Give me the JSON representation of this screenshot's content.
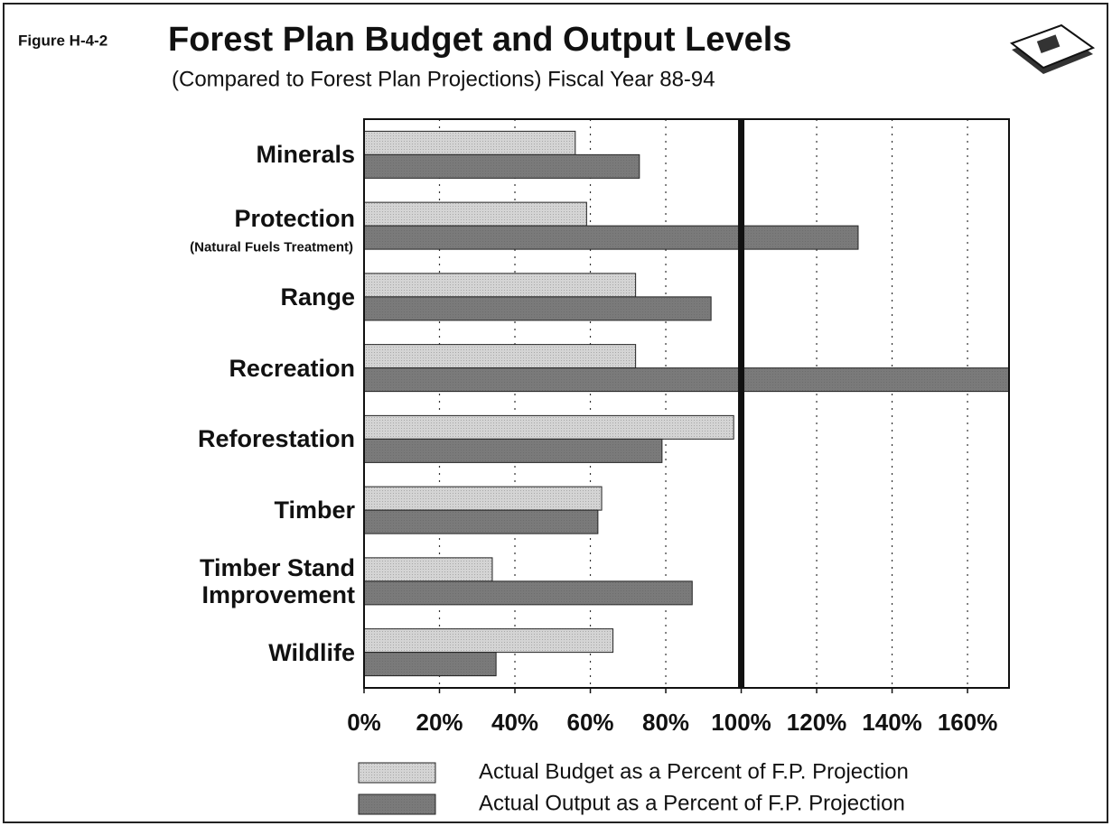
{
  "chart_data": {
    "type": "hbar",
    "figure_label": "Figure H-4-2",
    "title": "Forest Plan Budget and Output Levels",
    "subtitle": "(Compared to Forest Plan Projections) Fiscal Year 88-94",
    "categories": [
      "Minerals",
      "Protection",
      "Range",
      "Recreation",
      "Reforestation",
      "Timber",
      "Timber Stand Improvement",
      "Wildlife"
    ],
    "category_notes": [
      null,
      "(Natural Fuels Treatment)",
      null,
      null,
      null,
      null,
      null,
      null
    ],
    "series": [
      {
        "name": "Actual Budget as a Percent of F.P. Projection",
        "color": "#d4d4d4",
        "values": [
          56,
          59,
          72,
          72,
          98,
          63,
          34,
          66
        ]
      },
      {
        "name": "Actual Output as a Percent of F.P. Projection",
        "color": "#7a7a7a",
        "values": [
          73,
          131,
          92,
          171,
          79,
          62,
          87,
          35
        ]
      }
    ],
    "xlim": [
      0,
      171
    ],
    "xticks": [
      {
        "value": 0,
        "label": "0%"
      },
      {
        "value": 20,
        "label": "20%"
      },
      {
        "value": 40,
        "label": "40%"
      },
      {
        "value": 60,
        "label": "60%"
      },
      {
        "value": 80,
        "label": "80%"
      },
      {
        "value": 100,
        "label": "100%"
      },
      {
        "value": 120,
        "label": "120%"
      },
      {
        "value": 140,
        "label": "140%"
      },
      {
        "value": 160,
        "label": "160%"
      }
    ],
    "reference_line": 100,
    "grid": true
  }
}
